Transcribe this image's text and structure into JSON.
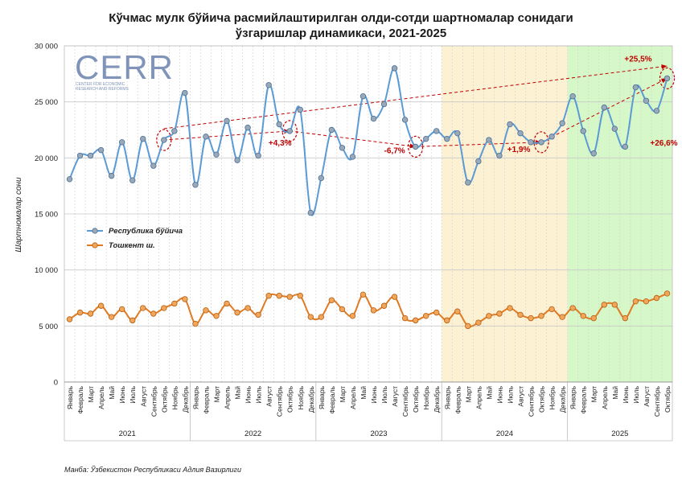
{
  "chart_data": {
    "type": "line",
    "title_line1": "Кўчмас мулк бўйича расмийлаштирилган олди-сотди шартномалар сонидаги",
    "title_line2": "ўзгаришлар динамикаси, 2021-2025",
    "ylabel": "Шартномалар сони",
    "xlabel": "",
    "ylim": [
      0,
      30000
    ],
    "yticks": [
      0,
      5000,
      10000,
      15000,
      20000,
      25000,
      30000
    ],
    "ytick_labels": [
      "0",
      "5 000",
      "10 000",
      "15 000",
      "20 000",
      "25 000",
      "30 000"
    ],
    "grid": true,
    "legend_position": "left-middle",
    "years": [
      {
        "label": "2021",
        "months": 12,
        "shade": "#ffffff"
      },
      {
        "label": "2022",
        "months": 12,
        "shade": "#ffffff"
      },
      {
        "label": "2023",
        "months": 12,
        "shade": "#ffffff"
      },
      {
        "label": "2024",
        "months": 12,
        "shade": "#fdf1d4"
      },
      {
        "label": "2025",
        "months": 10,
        "shade": "#d6f7c8"
      }
    ],
    "month_names": [
      "Январь",
      "Февраль",
      "Март",
      "Апрель",
      "Май",
      "Июнь",
      "Июль",
      "Август",
      "Сентябрь",
      "Октябрь",
      "Ноябрь",
      "Декабрь"
    ],
    "series": [
      {
        "name": "Республика бўйича",
        "color": "#5b9bd5",
        "marker_fill": "#9aa9b8",
        "values": [
          18100,
          20200,
          20200,
          20700,
          18400,
          21400,
          18000,
          21700,
          19300,
          21600,
          22400,
          25800,
          17600,
          21900,
          20300,
          23300,
          19800,
          22700,
          20200,
          26500,
          23000,
          22400,
          24300,
          15100,
          18200,
          22500,
          20900,
          20100,
          25500,
          23500,
          24800,
          28000,
          23400,
          21000,
          21700,
          22400,
          21700,
          22200,
          17800,
          19700,
          21600,
          20200,
          23000,
          22200,
          21400,
          21400,
          21900,
          23100,
          25500,
          22400,
          20400,
          24500,
          22600,
          21000,
          26300,
          25100,
          24200,
          27100
        ]
      },
      {
        "name": "Тошкент ш.",
        "color": "#e07b24",
        "marker_fill": "#f2a65a",
        "values": [
          5600,
          6200,
          6100,
          6800,
          5800,
          6500,
          5500,
          6600,
          6100,
          6600,
          7000,
          7400,
          5200,
          6400,
          5900,
          7000,
          6200,
          6600,
          6000,
          7700,
          7700,
          7600,
          7700,
          5800,
          5800,
          7300,
          6500,
          5900,
          7800,
          6400,
          6800,
          7600,
          5700,
          5500,
          5900,
          6200,
          5500,
          6300,
          5000,
          5300,
          5900,
          6100,
          6600,
          6000,
          5700,
          5900,
          6500,
          5800,
          6600,
          5900,
          5700,
          6900,
          6900,
          5700,
          7200,
          7200,
          7500,
          7900
        ]
      }
    ],
    "annotations": [
      {
        "text": "+4,3%",
        "color": "#c00000"
      },
      {
        "text": "-6,7%",
        "color": "#c00000"
      },
      {
        "text": "+1,9%",
        "color": "#c00000"
      },
      {
        "text": "+26,6%",
        "color": "#c00000"
      },
      {
        "text": "+25,5%",
        "color": "#c00000"
      }
    ]
  },
  "logo": {
    "text": "CERR",
    "subtitle_line1": "CENTER FOR ECONOMIC",
    "subtitle_line2": "RESEARCH AND REFORMS",
    "color": "#7f94b8"
  },
  "source": "Манба: Ўзбекистон Республикаси Адлия Вазирлиги"
}
